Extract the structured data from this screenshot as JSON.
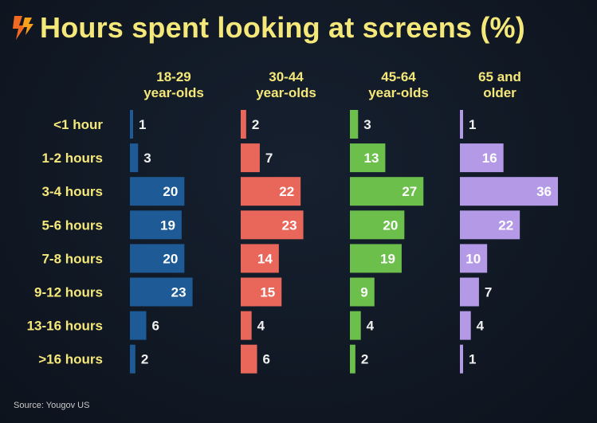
{
  "title": "Hours spent looking at screens (%)",
  "source": "Source: Yougov US",
  "colors": {
    "title": "#f5e87a",
    "background": "#0f1521",
    "series": [
      "#1d5a96",
      "#e8675a",
      "#6cbf4b",
      "#b49ae6"
    ],
    "label_light": "#ffffff",
    "label_dark": "#f0f0f0"
  },
  "chart_data": {
    "type": "bar",
    "orientation": "horizontal",
    "layout": "small-multiples",
    "title": "Hours spent looking at screens (%)",
    "categories": [
      "<1 hour",
      "1-2 hours",
      "3-4 hours",
      "5-6 hours",
      "7-8 hours",
      "9-12 hours",
      "13-16 hours",
      ">16 hours"
    ],
    "series": [
      {
        "name": [
          "18-29",
          "year-olds"
        ],
        "values": [
          1,
          3,
          20,
          19,
          20,
          23,
          6,
          2
        ]
      },
      {
        "name": [
          "30-44",
          "year-olds"
        ],
        "values": [
          2,
          7,
          22,
          23,
          14,
          15,
          4,
          6
        ]
      },
      {
        "name": [
          "45-64",
          "year-olds"
        ],
        "values": [
          3,
          13,
          27,
          20,
          19,
          9,
          4,
          2
        ]
      },
      {
        "name": [
          "65 and",
          "older"
        ],
        "values": [
          1,
          16,
          36,
          22,
          10,
          7,
          4,
          1
        ]
      }
    ],
    "unit": "%",
    "xlim": [
      0,
      36
    ]
  }
}
